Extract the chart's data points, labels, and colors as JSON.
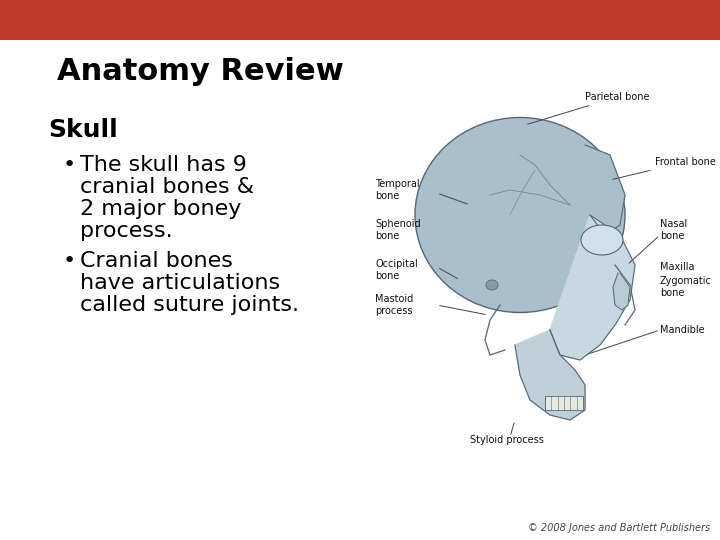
{
  "title": "Anatomy Review",
  "section_heading": "Skull",
  "bullet1_lines": [
    "The skull has 9",
    "cranial bones &",
    "2 major boney",
    "process."
  ],
  "bullet2_lines": [
    "Cranial bones",
    "have articulations",
    "called suture joints."
  ],
  "footer": "© 2008 Jones and Bartlett Publishers",
  "header_color": "#C0392B",
  "background_color": "#FFFFFF",
  "title_fontsize": 22,
  "heading_fontsize": 18,
  "body_fontsize": 16,
  "footer_fontsize": 7,
  "title_color": "#000000",
  "heading_color": "#000000",
  "body_color": "#000000",
  "footer_color": "#444444",
  "lbl_fontsize": 7,
  "lbl_color": "#111111",
  "skull_color": "#aabfcc",
  "skull_edge_color": "#556677",
  "line_color": "#333333"
}
